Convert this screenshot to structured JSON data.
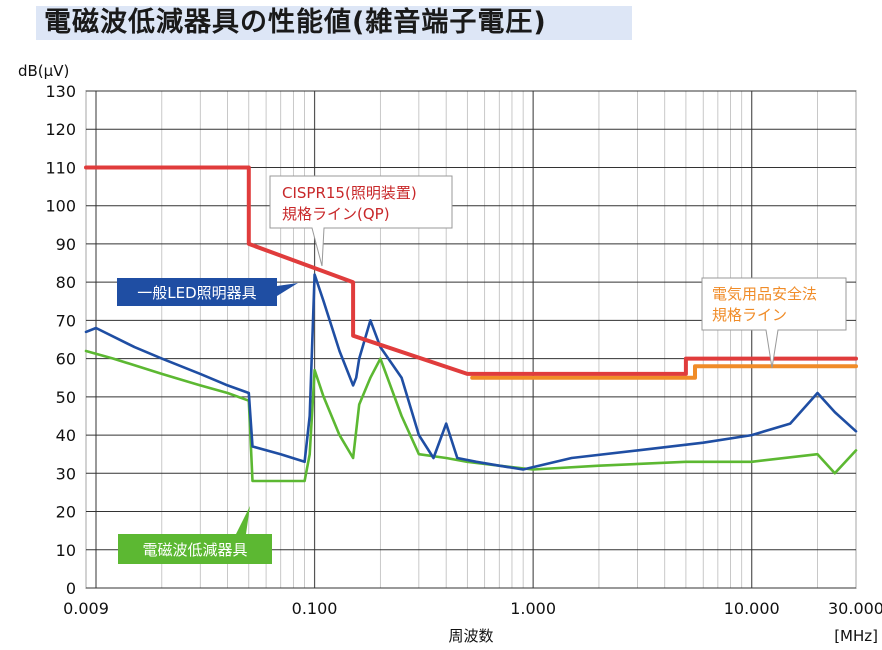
{
  "page": {
    "title": "電磁波低減器具の性能値(雑音端子電圧)"
  },
  "chart_data": {
    "type": "line",
    "title": "電磁波低減器具の性能値(雑音端子電圧)",
    "xlabel": "周波数",
    "xunit": "[MHz]",
    "ylabel": "dB(μV)",
    "x_scale": "log",
    "xlim": [
      0.009,
      30
    ],
    "ylim": [
      0,
      130
    ],
    "grid": true,
    "y_ticks": [
      0,
      10,
      20,
      30,
      40,
      50,
      60,
      70,
      80,
      90,
      100,
      110,
      120,
      130
    ],
    "x_ticks": [
      {
        "value": 0.009,
        "label": "0.009"
      },
      {
        "value": 0.1,
        "label": "0.100"
      },
      {
        "value": 1,
        "label": "1.000"
      },
      {
        "value": 10,
        "label": "10.000"
      },
      {
        "value": 30,
        "label": "30.000"
      }
    ],
    "series": [
      {
        "name": "CISPR15(照明装置)規格ライン(QP)",
        "color": "#e03c3c",
        "points": [
          [
            0.009,
            110
          ],
          [
            0.05,
            110
          ],
          [
            0.05,
            90
          ],
          [
            0.15,
            80
          ],
          [
            0.15,
            66
          ],
          [
            0.5,
            56
          ],
          [
            5,
            56
          ],
          [
            5,
            60
          ],
          [
            30,
            60
          ]
        ]
      },
      {
        "name": "電気用品安全法規格ライン",
        "color": "#f08c28",
        "points": [
          [
            0.526,
            55
          ],
          [
            5,
            55
          ],
          [
            5,
            55
          ],
          [
            5.5,
            55
          ],
          [
            5.5,
            58
          ],
          [
            30,
            58
          ]
        ]
      },
      {
        "name": "一般LED照明器具",
        "color": "#1f4ea3",
        "points": [
          [
            0.009,
            67
          ],
          [
            0.01,
            68
          ],
          [
            0.015,
            63
          ],
          [
            0.02,
            60
          ],
          [
            0.03,
            56
          ],
          [
            0.04,
            53
          ],
          [
            0.05,
            51
          ],
          [
            0.052,
            37
          ],
          [
            0.07,
            35
          ],
          [
            0.09,
            33
          ],
          [
            0.095,
            45
          ],
          [
            0.1,
            82
          ],
          [
            0.11,
            75
          ],
          [
            0.13,
            62
          ],
          [
            0.15,
            53
          ],
          [
            0.155,
            55
          ],
          [
            0.16,
            60
          ],
          [
            0.18,
            70
          ],
          [
            0.2,
            63
          ],
          [
            0.25,
            55
          ],
          [
            0.3,
            40
          ],
          [
            0.35,
            34
          ],
          [
            0.4,
            43
          ],
          [
            0.45,
            34
          ],
          [
            0.55,
            33
          ],
          [
            0.7,
            32
          ],
          [
            0.9,
            31
          ],
          [
            1.5,
            34
          ],
          [
            3,
            36
          ],
          [
            6,
            38
          ],
          [
            10,
            40
          ],
          [
            15,
            43
          ],
          [
            20,
            51
          ],
          [
            24,
            46
          ],
          [
            30,
            41
          ]
        ]
      },
      {
        "name": "電磁波低減器具",
        "color": "#5cb832",
        "points": [
          [
            0.009,
            62
          ],
          [
            0.012,
            60
          ],
          [
            0.02,
            56
          ],
          [
            0.03,
            53
          ],
          [
            0.04,
            51
          ],
          [
            0.05,
            49
          ],
          [
            0.052,
            28
          ],
          [
            0.07,
            28
          ],
          [
            0.09,
            28
          ],
          [
            0.095,
            35
          ],
          [
            0.1,
            57
          ],
          [
            0.11,
            50
          ],
          [
            0.13,
            40
          ],
          [
            0.15,
            34
          ],
          [
            0.16,
            48
          ],
          [
            0.18,
            55
          ],
          [
            0.2,
            60
          ],
          [
            0.25,
            45
          ],
          [
            0.3,
            35
          ],
          [
            0.4,
            34
          ],
          [
            0.5,
            33
          ],
          [
            0.7,
            32
          ],
          [
            1,
            31
          ],
          [
            2,
            32
          ],
          [
            5,
            33
          ],
          [
            10,
            33
          ],
          [
            20,
            35
          ],
          [
            24,
            30
          ],
          [
            30,
            36
          ]
        ]
      }
    ],
    "annotations": [
      {
        "text": [
          "CISPR15(照明装置)",
          "規格ライン(QP)"
        ],
        "style": "callout",
        "color": "#c8282a"
      },
      {
        "text": [
          "電気用品安全法",
          "規格ライン"
        ],
        "style": "callout",
        "color": "#f08c28"
      },
      {
        "text": [
          "一般LED照明器具"
        ],
        "style": "label-box",
        "background": "#1f4ea3"
      },
      {
        "text": [
          "電磁波低減器具"
        ],
        "style": "label-box",
        "background": "#5cb832"
      }
    ]
  }
}
